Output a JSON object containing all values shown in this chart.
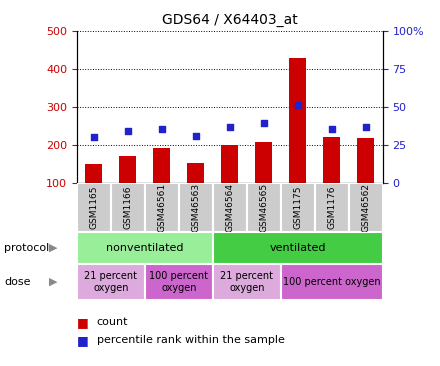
{
  "title": "GDS64 / X64403_at",
  "samples": [
    "GSM1165",
    "GSM1166",
    "GSM46561",
    "GSM46563",
    "GSM46564",
    "GSM46565",
    "GSM1175",
    "GSM1176",
    "GSM46562"
  ],
  "counts": [
    150,
    170,
    192,
    153,
    200,
    207,
    430,
    222,
    218
  ],
  "percentiles": [
    220,
    237,
    242,
    225,
    248,
    257,
    305,
    242,
    248
  ],
  "ylim_left": [
    100,
    500
  ],
  "ylim_right": [
    0,
    100
  ],
  "yticks_left": [
    100,
    200,
    300,
    400,
    500
  ],
  "yticks_right": [
    0,
    25,
    50,
    75,
    100
  ],
  "bar_color": "#cc0000",
  "dot_color": "#2222cc",
  "grid_color": "#000000",
  "protocol_groups": [
    {
      "label": "nonventilated",
      "start": 0,
      "end": 4,
      "color": "#99ee99"
    },
    {
      "label": "ventilated",
      "start": 4,
      "end": 9,
      "color": "#44cc44"
    }
  ],
  "dose_groups": [
    {
      "label": "21 percent\noxygen",
      "start": 0,
      "end": 2,
      "color": "#ddaadd"
    },
    {
      "label": "100 percent\noxygen",
      "start": 2,
      "end": 4,
      "color": "#cc66cc"
    },
    {
      "label": "21 percent\noxygen",
      "start": 4,
      "end": 6,
      "color": "#ddaadd"
    },
    {
      "label": "100 percent oxygen",
      "start": 6,
      "end": 9,
      "color": "#cc66cc"
    }
  ],
  "left_ylabel_color": "#cc0000",
  "right_ylabel_color": "#2222cc",
  "sample_box_color": "#cccccc",
  "legend_count_color": "#cc0000",
  "legend_dot_color": "#2222cc"
}
